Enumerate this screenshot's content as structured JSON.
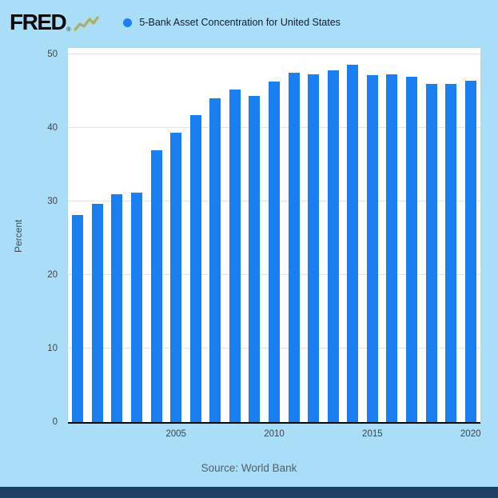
{
  "header": {
    "logo_text": "FRED",
    "logo_reg": "®",
    "legend_label": "5-Bank Asset Concentration for United States"
  },
  "footer": {
    "source": "Source: World Bank"
  },
  "colors": {
    "background": "#aadef8",
    "bar": "#1a7ff0",
    "footer_bar": "#1c3f66",
    "gridline": "#e4e4e4",
    "axis": "#0a0a0a",
    "tick_text": "#3c434a",
    "source_text": "#545e66"
  },
  "chart_data": {
    "type": "bar",
    "title": "5-Bank Asset Concentration for United States",
    "xlabel": "",
    "ylabel": "Percent",
    "ylim": [
      0,
      50
    ],
    "yticks": [
      0,
      10,
      20,
      30,
      40,
      50
    ],
    "xticks": [
      2005,
      2010,
      2015,
      2020
    ],
    "categories": [
      2000,
      2001,
      2002,
      2003,
      2004,
      2005,
      2006,
      2007,
      2008,
      2009,
      2010,
      2011,
      2012,
      2013,
      2014,
      2015,
      2016,
      2017,
      2018,
      2019,
      2020
    ],
    "values": [
      28.2,
      29.7,
      31.0,
      31.2,
      37.0,
      39.4,
      41.7,
      44.0,
      45.2,
      44.3,
      46.3,
      47.5,
      47.3,
      47.8,
      48.6,
      47.2,
      47.3,
      47.0,
      46.0,
      46.0,
      46.4
    ],
    "bar_color": "#1a7ff0",
    "grid": true,
    "legend_position": "top-left",
    "source": "World Bank"
  }
}
